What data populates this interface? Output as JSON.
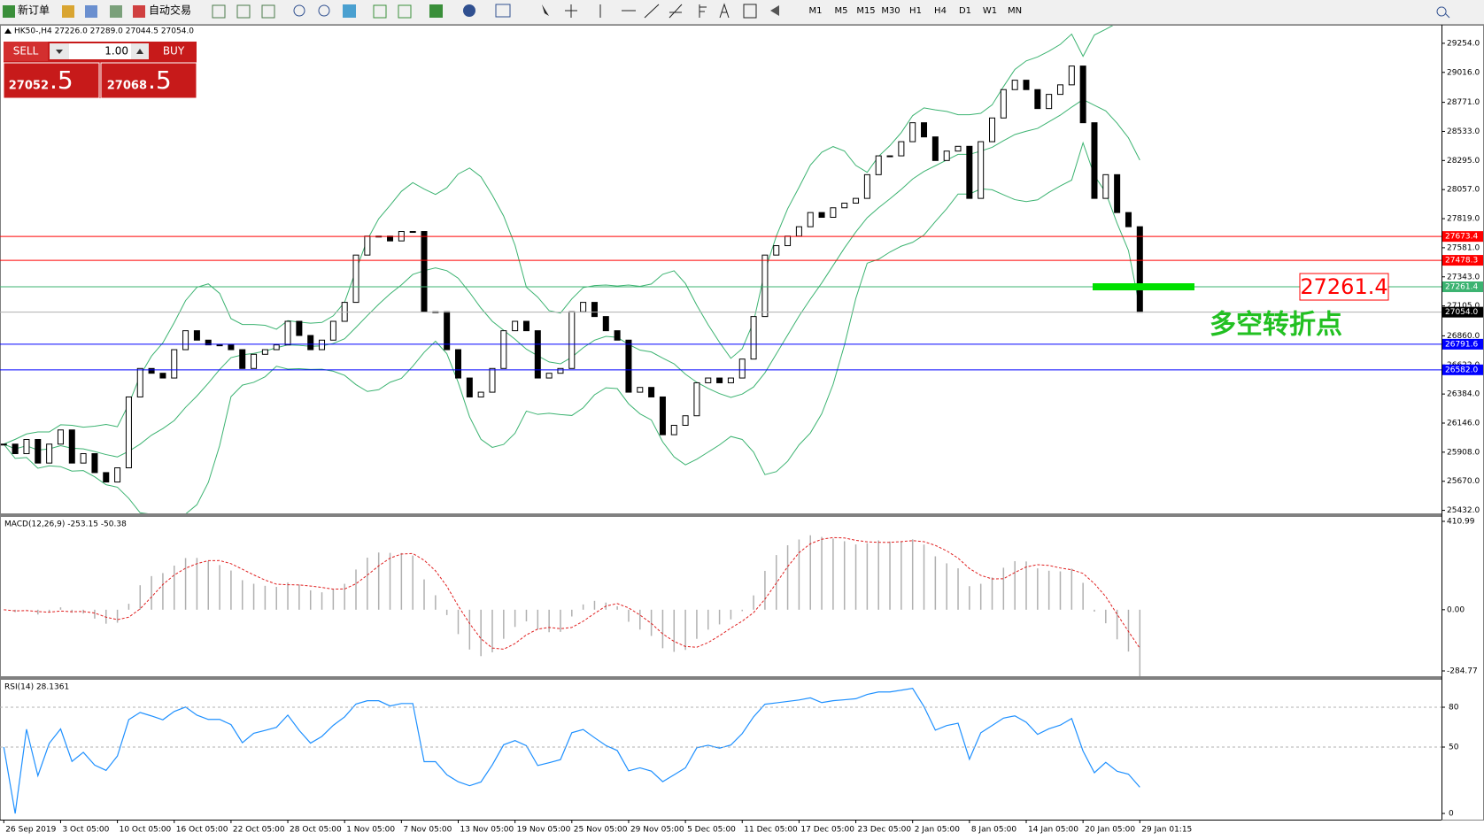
{
  "toolbar": {
    "new_order": "新订单",
    "auto_trade": "自动交易",
    "timeframes": [
      "M1",
      "M5",
      "M15",
      "M30",
      "H1",
      "H4",
      "D1",
      "W1",
      "MN"
    ]
  },
  "trade_panel": {
    "sell": "SELL",
    "buy": "BUY",
    "volume": "1.00",
    "sell_price_main": "27052",
    "sell_price_frac": ".5",
    "buy_price_main": "27068",
    "buy_price_frac": ".5"
  },
  "chart_data": [
    {
      "type": "candlestick",
      "title": "HK50-,H4 27226.0 27289.0 27044.5 27054.0",
      "categories": [
        "26 Sep 2019",
        null,
        null,
        null,
        null,
        "3 Oct 05:00",
        null,
        null,
        null,
        null,
        "10 Oct 05:00",
        null,
        null,
        null,
        null,
        "16 Oct 05:00",
        null,
        null,
        null,
        null,
        "22 Oct 05:00",
        null,
        null,
        null,
        null,
        "28 Oct 05:00",
        null,
        null,
        null,
        null,
        "1 Nov 05:00",
        null,
        null,
        null,
        null,
        "7 Nov 05:00",
        null,
        null,
        null,
        null,
        "13 Nov 05:00",
        null,
        null,
        null,
        null,
        "19 Nov 05:00",
        null,
        null,
        null,
        null,
        "25 Nov 05:00",
        null,
        null,
        null,
        null,
        "29 Nov 05:00",
        null,
        null,
        null,
        null,
        "5 Dec 05:00",
        null,
        null,
        null,
        null,
        "11 Dec 05:00",
        null,
        null,
        null,
        null,
        "17 Dec 05:00",
        null,
        null,
        null,
        null,
        "23 Dec 05:00",
        null,
        null,
        null,
        null,
        "2 Jan 05:00",
        null,
        null,
        null,
        null,
        "8 Jan 05:00",
        null,
        null,
        null,
        null,
        "14 Jan 05:00",
        null,
        null,
        null,
        null,
        "20 Jan 05:00",
        null,
        null,
        null,
        null,
        "29 Jan 01:15"
      ],
      "values": [
        25974,
        25896,
        26012,
        25819,
        25974,
        26090,
        25819,
        25896,
        25741,
        25664,
        25780,
        26360,
        26593,
        26554,
        26515,
        26747,
        26902,
        26825,
        26786,
        26786,
        26747,
        26593,
        26709,
        26747,
        26786,
        26979,
        26863,
        26747,
        26825,
        26979,
        27134,
        27521,
        27676,
        27676,
        27637,
        27714,
        27714,
        27057,
        27057,
        26747,
        26515,
        26360,
        26399,
        26593,
        26902,
        26979,
        26902,
        26515,
        26554,
        26593,
        27057,
        27134,
        27018,
        26902,
        26825,
        26399,
        26438,
        26360,
        26051,
        26128,
        26206,
        26476,
        26515,
        26476,
        26515,
        26670,
        27018,
        27521,
        27598,
        27676,
        27753,
        27869,
        27830,
        27908,
        27946,
        27985,
        28179,
        28333,
        28333,
        28449,
        28604,
        28488,
        28295,
        28372,
        28411,
        27985,
        28449,
        28643,
        28875,
        28952,
        28875,
        28720,
        28836,
        28914,
        29068,
        28604,
        27985,
        28179,
        27869,
        27753,
        27054
      ],
      "color_up": "#ffffff",
      "color_down": "#000000",
      "ylim": [
        25400,
        29420
      ],
      "yticks": [
        {
          "value": 29254,
          "label": "29254.0"
        },
        {
          "value": 29016,
          "label": "29016.0"
        },
        {
          "value": 28771,
          "label": "28771.0"
        },
        {
          "value": 28533,
          "label": "28533.0"
        },
        {
          "value": 28295,
          "label": "28295.0"
        },
        {
          "value": 28057,
          "label": "28057.0"
        },
        {
          "value": 27819,
          "label": "27819.0"
        },
        {
          "value": 27581,
          "label": "27581.0"
        },
        {
          "value": 27343,
          "label": "27343.0"
        },
        {
          "value": 27105,
          "label": "27105.0"
        },
        {
          "value": 26860,
          "label": "26860.0"
        },
        {
          "value": 26622,
          "label": "26622.0"
        },
        {
          "value": 26384,
          "label": "26384.0"
        },
        {
          "value": 26146,
          "label": "26146.0"
        },
        {
          "value": 25908,
          "label": "25908.0"
        },
        {
          "value": 25670,
          "label": "25670.0"
        },
        {
          "value": 25432,
          "label": "25432.0"
        }
      ],
      "levels": [
        {
          "value": 27673.4,
          "color": "#ff0000"
        },
        {
          "value": 27478.3,
          "color": "#ff0000"
        },
        {
          "value": 27261.4,
          "color": "#3cb371"
        },
        {
          "value": 27054,
          "label": "27054.0",
          "color": "#000000"
        },
        {
          "value": 26791.6,
          "color": "#0000ff"
        },
        {
          "value": 26582,
          "label": "26582.0",
          "color": "#0000ff"
        }
      ],
      "marker": {
        "value": 27261.4,
        "color": "#00e000",
        "text": "多空转折点"
      }
    },
    {
      "type": "macd",
      "title": "MACD(12,26,9) -253.15 -50.38",
      "ylim": [
        -309.5,
        431.6
      ],
      "yticks": [
        410.99,
        {
          "value": 0,
          "label": "0.00"
        },
        -284.77
      ]
    },
    {
      "type": "rsi",
      "title": "RSI(14) 28.1361",
      "ylim": [
        0,
        100
      ],
      "yticks": [
        80,
        50,
        0
      ],
      "grid": true
    }
  ]
}
